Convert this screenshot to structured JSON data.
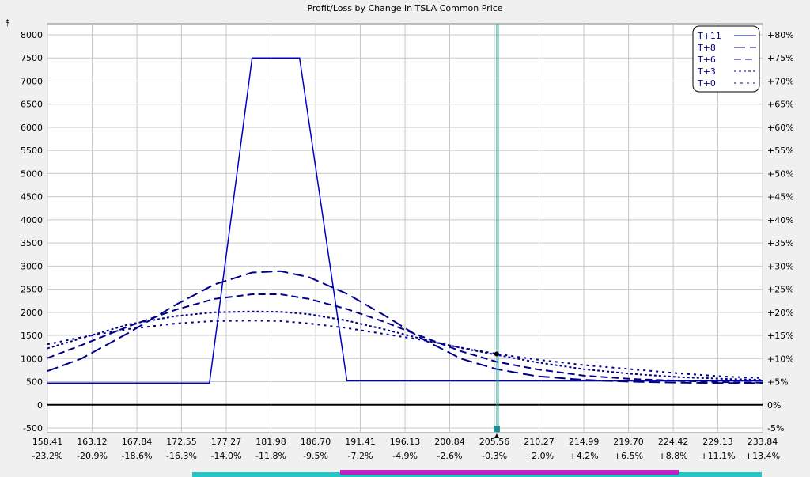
{
  "chart_data": {
    "type": "line",
    "title": "Profit/Loss by Change in TSLA Common Price",
    "y_unit_label": "$",
    "x_ticks": [
      "158.41",
      "163.12",
      "167.84",
      "172.55",
      "177.27",
      "181.98",
      "186.70",
      "191.41",
      "196.13",
      "200.84",
      "205.56",
      "210.27",
      "214.99",
      "219.70",
      "224.42",
      "229.13",
      "233.84"
    ],
    "x_pct_ticks": [
      "-23.2%",
      "-20.9%",
      "-18.6%",
      "-16.3%",
      "-14.0%",
      "-11.8%",
      "-9.5%",
      "-7.2%",
      "-4.9%",
      "-2.6%",
      "-0.3%",
      "+2.0%",
      "+4.2%",
      "+6.5%",
      "+8.8%",
      "+11.1%",
      "+13.4%"
    ],
    "y_ticks": [
      "-500",
      "0",
      "500",
      "1000",
      "1500",
      "2000",
      "2500",
      "3000",
      "3500",
      "4000",
      "4500",
      "5000",
      "5500",
      "6000",
      "6500",
      "7000",
      "7500",
      "8000"
    ],
    "y_right_ticks": [
      "-5%",
      "0%",
      "+5%",
      "+10%",
      "+15%",
      "+20%",
      "+25%",
      "+30%",
      "+35%",
      "+40%",
      "+45%",
      "+50%",
      "+55%",
      "+60%",
      "+65%",
      "+70%",
      "+75%",
      "+80%"
    ],
    "xlim": [
      158.41,
      233.84
    ],
    "ylim": [
      -500,
      8000
    ],
    "grid": true,
    "legend_position": "top-right",
    "current_price": 205.8,
    "series": [
      {
        "name": "T+11",
        "style": "solid",
        "x": [
          158.41,
          175.5,
          180.0,
          185.0,
          190.0,
          233.84
        ],
        "y": [
          470,
          470,
          7500,
          7500,
          520,
          520
        ]
      },
      {
        "name": "T+8",
        "style": "longdash",
        "x": [
          158.41,
          162,
          167,
          172,
          176,
          180,
          183,
          186,
          190,
          194,
          198,
          202,
          205.8,
          210,
          215,
          220,
          225,
          230,
          233.84
        ],
        "y": [
          730,
          1000,
          1560,
          2170,
          2600,
          2860,
          2890,
          2760,
          2400,
          1930,
          1420,
          1000,
          770,
          620,
          540,
          500,
          480,
          470,
          470
        ]
      },
      {
        "name": "T+6",
        "style": "dash",
        "x": [
          158.41,
          162,
          167,
          172,
          176,
          180,
          183,
          186,
          190,
          194,
          198,
          202,
          205.8,
          210,
          215,
          220,
          225,
          230,
          233.84
        ],
        "y": [
          1010,
          1290,
          1700,
          2060,
          2290,
          2390,
          2390,
          2290,
          2070,
          1790,
          1470,
          1160,
          930,
          770,
          630,
          560,
          520,
          490,
          480
        ]
      },
      {
        "name": "T+3",
        "style": "dot",
        "x": [
          158.41,
          162,
          167,
          172,
          176,
          180,
          183,
          186,
          190,
          194,
          198,
          202,
          205.8,
          210,
          215,
          220,
          225,
          230,
          233.84
        ],
        "y": [
          1220,
          1440,
          1740,
          1920,
          2000,
          2020,
          2010,
          1960,
          1820,
          1630,
          1420,
          1230,
          1080,
          920,
          770,
          670,
          600,
          560,
          540
        ]
      },
      {
        "name": "T+0",
        "style": "sparsedot",
        "x": [
          158.41,
          162,
          167,
          172,
          176,
          180,
          183,
          186,
          190,
          194,
          198,
          202,
          205.8,
          210,
          215,
          220,
          225,
          230,
          233.84
        ],
        "y": [
          1310,
          1460,
          1640,
          1760,
          1810,
          1820,
          1810,
          1760,
          1660,
          1530,
          1400,
          1240,
          1100,
          980,
          860,
          770,
          680,
          610,
          580
        ]
      }
    ],
    "marker": {
      "x": 205.8,
      "y": 1100
    }
  },
  "colors": {
    "series": "#00008b",
    "solid": "#0000c8",
    "cursor": "#2aa198",
    "grid": "#c8c8c8",
    "axis": "#000000"
  }
}
